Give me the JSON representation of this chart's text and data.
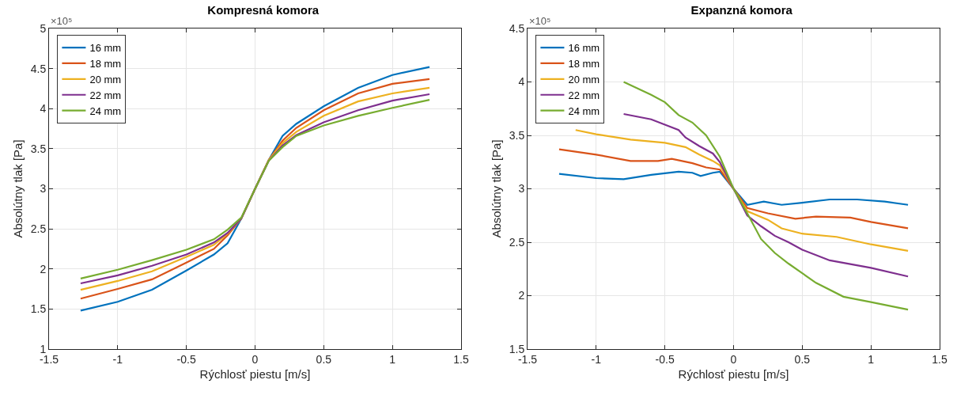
{
  "chart_data": [
    {
      "type": "line",
      "title": "Kompresná komora",
      "xlabel": "Rýchlosť piestu [m/s]",
      "ylabel": "Absolútny tlak [Pa]",
      "annotations": [
        "×10⁵"
      ],
      "xlim": [
        -1.5,
        1.5
      ],
      "xticks": [
        -1.5,
        -1,
        -0.5,
        0,
        0.5,
        1,
        1.5
      ],
      "ylim": [
        1,
        5
      ],
      "yticks": [
        1,
        1.5,
        2,
        2.5,
        3,
        3.5,
        4,
        4.5,
        5
      ],
      "grid": true,
      "legend": "top left",
      "marker": "none",
      "line_style": "solid",
      "x": [
        -1.27,
        -1,
        -0.75,
        -0.5,
        -0.3,
        -0.2,
        -0.1,
        0,
        0.1,
        0.2,
        0.3,
        0.5,
        0.75,
        1,
        1.27
      ],
      "series": [
        {
          "name": "16 mm",
          "color": "#0072bd",
          "values": [
            1.48,
            1.59,
            1.74,
            1.98,
            2.18,
            2.32,
            2.63,
            3.0,
            3.36,
            3.66,
            3.81,
            4.03,
            4.26,
            4.42,
            4.52
          ]
        },
        {
          "name": "18 mm",
          "color": "#d95319",
          "values": [
            1.63,
            1.75,
            1.87,
            2.08,
            2.25,
            2.42,
            2.63,
            3.0,
            3.36,
            3.6,
            3.76,
            3.98,
            4.19,
            4.31,
            4.37
          ]
        },
        {
          "name": "20 mm",
          "color": "#edb120",
          "values": [
            1.74,
            1.85,
            1.97,
            2.15,
            2.3,
            2.44,
            2.63,
            3.0,
            3.36,
            3.57,
            3.71,
            3.91,
            4.09,
            4.19,
            4.26
          ]
        },
        {
          "name": "22 mm",
          "color": "#7e2f8e",
          "values": [
            1.82,
            1.92,
            2.04,
            2.18,
            2.33,
            2.45,
            2.63,
            3.0,
            3.35,
            3.54,
            3.67,
            3.83,
            3.98,
            4.1,
            4.18
          ]
        },
        {
          "name": "24 mm",
          "color": "#77ac30",
          "values": [
            1.88,
            1.99,
            2.11,
            2.24,
            2.37,
            2.49,
            2.64,
            3.0,
            3.35,
            3.52,
            3.66,
            3.79,
            3.91,
            4.01,
            4.11
          ]
        }
      ]
    },
    {
      "type": "line",
      "title": "Expanzná komora",
      "xlabel": "Rýchlosť piestu [m/s]",
      "ylabel": "Absolútny tlak [Pa]",
      "annotations": [
        "×10⁵"
      ],
      "xlim": [
        -1.5,
        1.5
      ],
      "xticks": [
        -1.5,
        -1,
        -0.5,
        0,
        0.5,
        1,
        1.5
      ],
      "ylim": [
        1.5,
        4.5
      ],
      "yticks": [
        1.5,
        2,
        2.5,
        3,
        3.5,
        4,
        4.5
      ],
      "grid": true,
      "legend": "top left",
      "marker": "none",
      "line_style": "solid",
      "series": [
        {
          "name": "16 mm",
          "color": "#0072bd",
          "x": [
            -1.27,
            -1,
            -0.8,
            -0.6,
            -0.4,
            -0.3,
            -0.24,
            -0.15,
            -0.1,
            0,
            0.1,
            0.22,
            0.35,
            0.5,
            0.7,
            0.9,
            1.1,
            1.27
          ],
          "values": [
            3.14,
            3.1,
            3.09,
            3.13,
            3.16,
            3.15,
            3.12,
            3.15,
            3.16,
            3.0,
            2.85,
            2.88,
            2.85,
            2.87,
            2.9,
            2.9,
            2.88,
            2.85
          ]
        },
        {
          "name": "18 mm",
          "color": "#d95319",
          "x": [
            -1.27,
            -1,
            -0.75,
            -0.55,
            -0.45,
            -0.3,
            -0.2,
            -0.1,
            0,
            0.1,
            0.25,
            0.45,
            0.6,
            0.85,
            1,
            1.27
          ],
          "values": [
            3.37,
            3.32,
            3.26,
            3.26,
            3.28,
            3.24,
            3.2,
            3.18,
            3.0,
            2.82,
            2.77,
            2.72,
            2.74,
            2.73,
            2.69,
            2.63
          ]
        },
        {
          "name": "20 mm",
          "color": "#edb120",
          "x": [
            -1.15,
            -1,
            -0.75,
            -0.5,
            -0.35,
            -0.25,
            -0.15,
            -0.1,
            0,
            0.1,
            0.25,
            0.35,
            0.5,
            0.75,
            1,
            1.27
          ],
          "values": [
            3.55,
            3.51,
            3.46,
            3.43,
            3.39,
            3.32,
            3.26,
            3.22,
            3.0,
            2.79,
            2.71,
            2.63,
            2.58,
            2.55,
            2.48,
            2.42
          ]
        },
        {
          "name": "22 mm",
          "color": "#7e2f8e",
          "x": [
            -0.8,
            -0.6,
            -0.5,
            -0.4,
            -0.35,
            -0.25,
            -0.15,
            -0.1,
            0,
            0.1,
            0.2,
            0.3,
            0.4,
            0.5,
            0.7,
            1,
            1.27
          ],
          "values": [
            3.7,
            3.65,
            3.6,
            3.55,
            3.48,
            3.4,
            3.33,
            3.25,
            3.0,
            2.75,
            2.65,
            2.56,
            2.5,
            2.43,
            2.33,
            2.26,
            2.18
          ]
        },
        {
          "name": "24 mm",
          "color": "#77ac30",
          "x": [
            -0.8,
            -0.6,
            -0.5,
            -0.4,
            -0.3,
            -0.2,
            -0.1,
            0,
            0.1,
            0.2,
            0.3,
            0.4,
            0.5,
            0.6,
            0.8,
            1,
            1.27
          ],
          "values": [
            4.0,
            3.88,
            3.81,
            3.69,
            3.62,
            3.5,
            3.3,
            3.0,
            2.77,
            2.53,
            2.4,
            2.3,
            2.21,
            2.12,
            1.99,
            1.94,
            1.87
          ]
        }
      ]
    }
  ]
}
